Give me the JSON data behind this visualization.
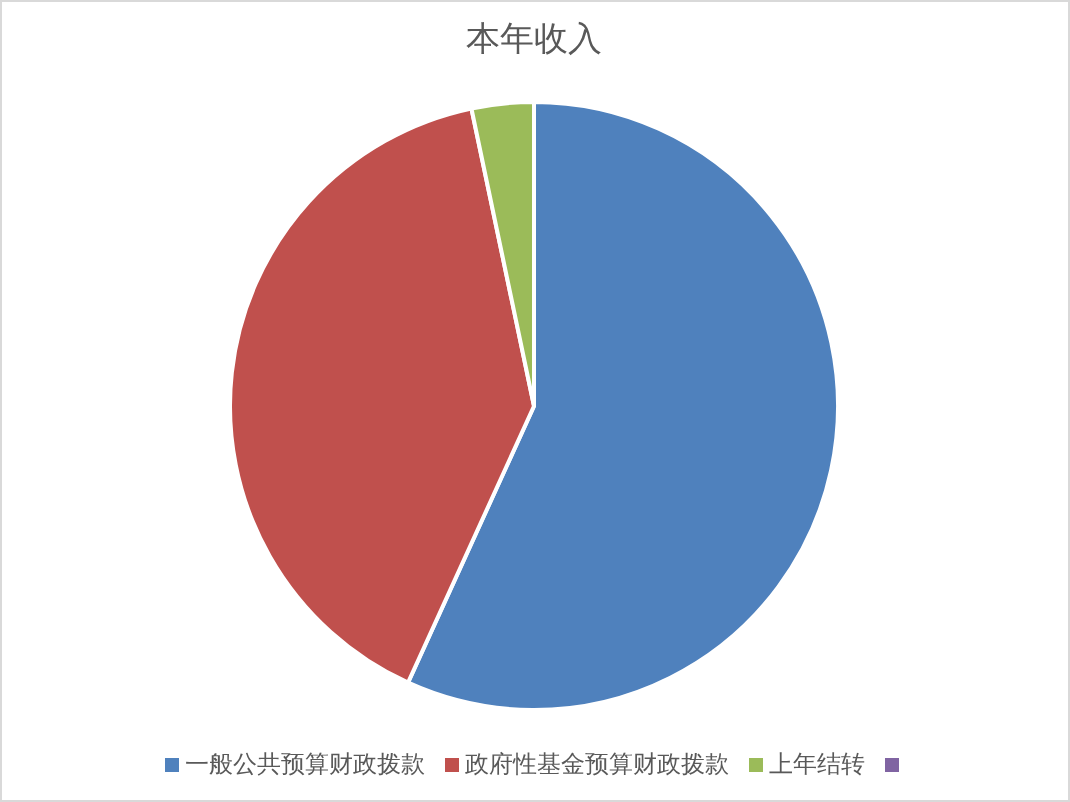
{
  "chart_data": {
    "type": "pie",
    "title": "本年收入",
    "categories": [
      "一般公共预算财政拨款",
      "政府性基金预算财政拨款",
      "上年结转",
      null
    ],
    "values": [
      56.8,
      39.9,
      3.3,
      0
    ],
    "colors": [
      "#4f81bd",
      "#c0504d",
      "#9bbb59",
      "#8064a2"
    ],
    "legend": "bottom"
  }
}
